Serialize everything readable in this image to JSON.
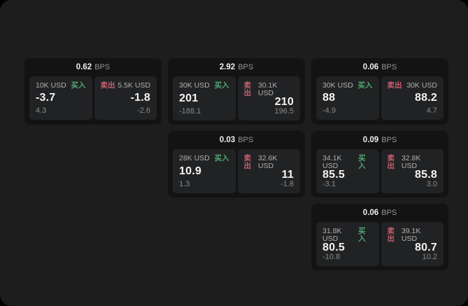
{
  "page": {
    "background_color": "#1d1d1e",
    "outside_color": "#000000",
    "card_color": "#131314",
    "panel_color": "#212224"
  },
  "labels": {
    "bps": "BPS",
    "buy": "买入",
    "sell": "卖出"
  },
  "colors": {
    "buy": "#4fa873",
    "sell": "#c96070"
  },
  "cards": [
    {
      "bps": "0.62",
      "buy": {
        "amount": "10K USD",
        "value": "-3.7",
        "delta": "4.3"
      },
      "sell": {
        "amount": "5.5K USD",
        "value": "-1.8",
        "delta": "-2.6"
      }
    },
    {
      "bps": "2.92",
      "buy": {
        "amount": "30K USD",
        "value": "201",
        "delta": "-188.1"
      },
      "sell": {
        "amount": "30.1K USD",
        "value": "210",
        "delta": "196.5"
      }
    },
    {
      "bps": "0.06",
      "buy": {
        "amount": "30K USD",
        "value": "88",
        "delta": "-4.9"
      },
      "sell": {
        "amount": "30K USD",
        "value": "88.2",
        "delta": "4.7"
      }
    },
    {
      "bps": "0.03",
      "buy": {
        "amount": "28K USD",
        "value": "10.9",
        "delta": "1.3"
      },
      "sell": {
        "amount": "32.6K USD",
        "value": "11",
        "delta": "-1.8"
      }
    },
    {
      "bps": "0.09",
      "buy": {
        "amount": "34.1K USD",
        "value": "85.5",
        "delta": "-3.1"
      },
      "sell": {
        "amount": "32.8K USD",
        "value": "85.8",
        "delta": "3.0"
      }
    },
    {
      "bps": "0.06",
      "buy": {
        "amount": "31.8K USD",
        "value": "80.5",
        "delta": "-10.8"
      },
      "sell": {
        "amount": "39.1K USD",
        "value": "80.7",
        "delta": "10.2"
      }
    }
  ]
}
